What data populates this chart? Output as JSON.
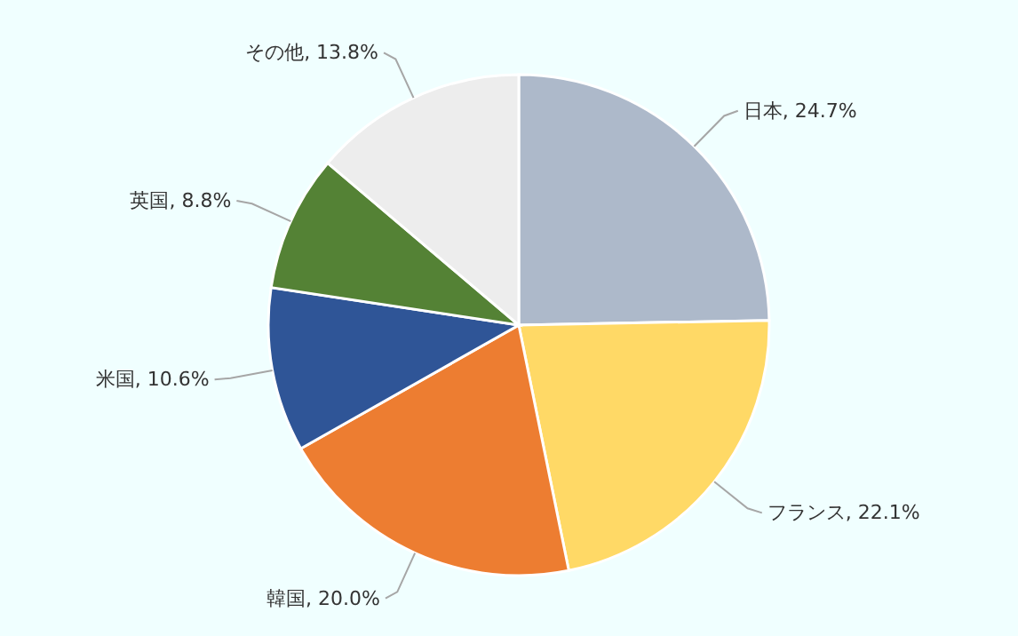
{
  "chart_data": {
    "type": "pie",
    "categories": [
      "日本",
      "フランス",
      "韓国",
      "米国",
      "英国",
      "その他"
    ],
    "values": [
      24.7,
      22.1,
      20.0,
      10.6,
      8.8,
      13.8
    ],
    "value_labels": [
      "24.7%",
      "22.1%",
      "20.0%",
      "10.6%",
      "8.8%",
      "13.8%"
    ],
    "colors": [
      "#adb9ca",
      "#ffd966",
      "#ed7d31",
      "#2f5597",
      "#548235",
      "#ededed"
    ],
    "legend": false
  }
}
